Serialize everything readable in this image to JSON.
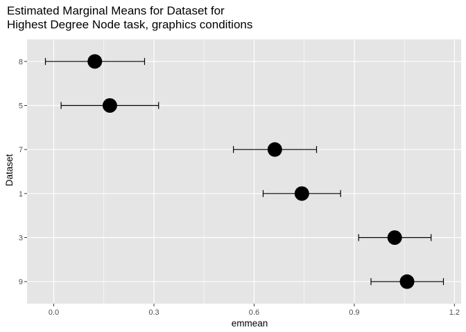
{
  "chart_data": {
    "type": "scatter",
    "title": [
      "Estimated Marginal Means for Dataset for",
      "Highest Degree Node task, graphics conditions"
    ],
    "xlabel": "emmean",
    "ylabel": "Dataset",
    "xlim": [
      -0.08,
      1.22
    ],
    "x_ticks": [
      0.0,
      0.3,
      0.6,
      0.9,
      1.2
    ],
    "x_tick_labels": [
      "0.0",
      "0.3",
      "0.6",
      "0.9",
      "1.2"
    ],
    "categories": [
      "8",
      "5",
      "7",
      "1",
      "3",
      "9"
    ],
    "points": [
      {
        "dataset": "8",
        "emmean": 0.123,
        "lower": -0.025,
        "upper": 0.272
      },
      {
        "dataset": "5",
        "emmean": 0.168,
        "lower": 0.022,
        "upper": 0.314
      },
      {
        "dataset": "7",
        "emmean": 0.662,
        "lower": 0.538,
        "upper": 0.787
      },
      {
        "dataset": "1",
        "emmean": 0.743,
        "lower": 0.627,
        "upper": 0.859
      },
      {
        "dataset": "3",
        "emmean": 1.021,
        "lower": 0.913,
        "upper": 1.13
      },
      {
        "dataset": "9",
        "emmean": 1.058,
        "lower": 0.95,
        "upper": 1.167
      }
    ],
    "grid": true,
    "legend": "none",
    "colors": {
      "panel": "#e5e5e5",
      "grid": "#ffffff",
      "point": "#000000",
      "text": "#4d4d4d"
    }
  }
}
